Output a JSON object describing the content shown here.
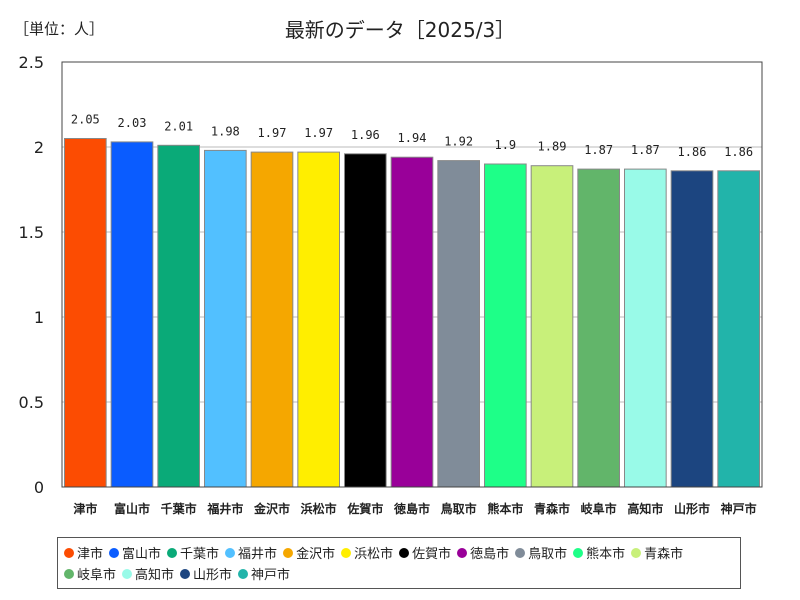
{
  "unit_label": "［単位：人］",
  "chart_data": {
    "type": "bar",
    "title": "最新のデータ［2025/3］",
    "xlabel": "",
    "ylabel": "",
    "ylim": [
      0,
      2.5
    ],
    "yticks": [
      0,
      0.5,
      1,
      1.5,
      2,
      2.5
    ],
    "grid": true,
    "legend_position": "bottom",
    "categories": [
      "津市",
      "富山市",
      "千葉市",
      "福井市",
      "金沢市",
      "浜松市",
      "佐賀市",
      "徳島市",
      "鳥取市",
      "熊本市",
      "青森市",
      "岐阜市",
      "高知市",
      "山形市",
      "神戸市"
    ],
    "values": [
      2.05,
      2.03,
      2.01,
      1.98,
      1.97,
      1.97,
      1.96,
      1.94,
      1.92,
      1.9,
      1.89,
      1.87,
      1.87,
      1.86,
      1.86
    ],
    "data_labels": [
      "2.05",
      "2.03",
      "2.01",
      "1.98",
      "1.97",
      "1.97",
      "1.96",
      "1.94",
      "1.92",
      "1.9",
      "1.89",
      "1.87",
      "1.87",
      "1.86",
      "1.86"
    ],
    "colors": [
      "#fc4c02",
      "#0a5cff",
      "#0aaa78",
      "#52c0ff",
      "#f5a700",
      "#ffee00",
      "#000000",
      "#990099",
      "#808c99",
      "#1eff88",
      "#c8f07a",
      "#62b56a",
      "#99fae8",
      "#1c4580",
      "#22b4aa"
    ]
  }
}
